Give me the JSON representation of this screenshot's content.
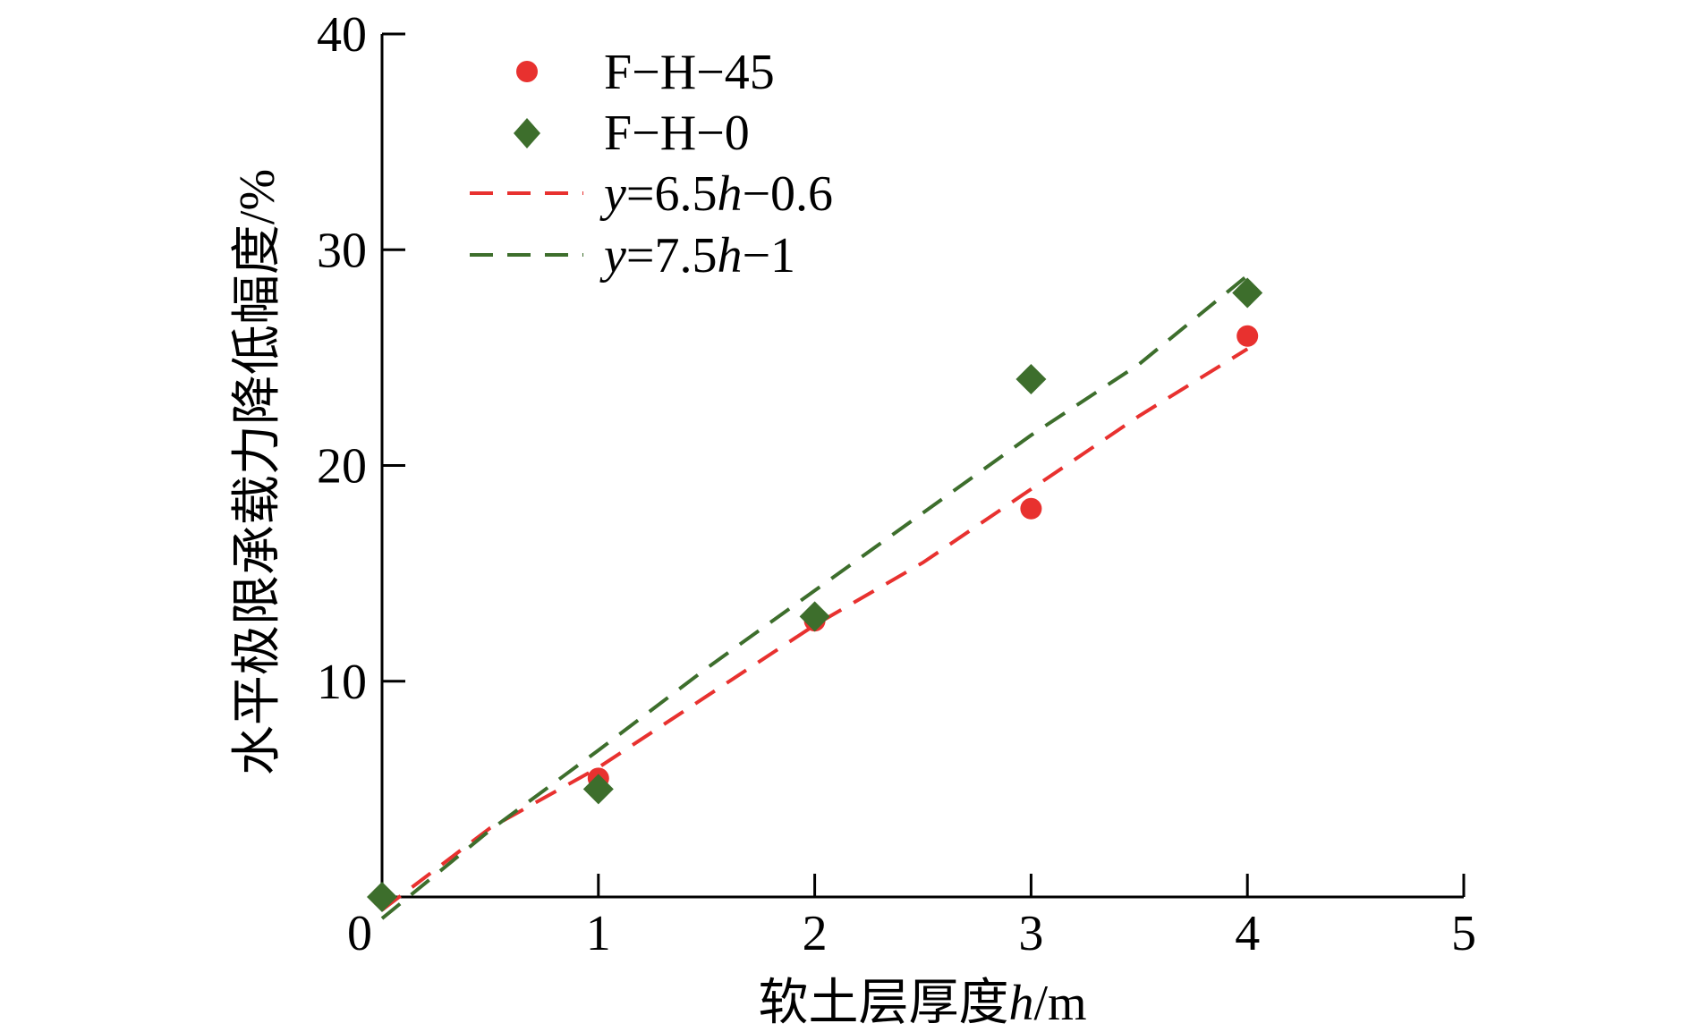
{
  "chart_data": {
    "type": "scatter",
    "title": "",
    "xlabel": "软土层厚度h/m",
    "xlabel_parts": {
      "text": "软土层厚度",
      "var": "h",
      "unit": "/m"
    },
    "ylabel": "水平极限承载力降低幅度/%",
    "xlim": [
      0,
      5
    ],
    "ylim": [
      0,
      40
    ],
    "x_ticks": [
      1,
      2,
      3,
      4,
      5
    ],
    "y_ticks": [
      10,
      20,
      30,
      40
    ],
    "origin_label": "0",
    "grid": false,
    "legend_position": "top-left",
    "series": [
      {
        "name": "F−H−45",
        "marker": "circle",
        "color": "#e8312f",
        "x": [
          0,
          1,
          2,
          3,
          4
        ],
        "y": [
          0,
          5.5,
          12.8,
          18,
          26
        ]
      },
      {
        "name": "F−H−0",
        "marker": "diamond",
        "color": "#3d6e2c",
        "x": [
          0,
          1,
          2,
          3,
          4
        ],
        "y": [
          0,
          5,
          13,
          24,
          28
        ]
      }
    ],
    "fits": [
      {
        "label": "y=6.5h−0.6",
        "label_parts": [
          "y",
          "=6.5",
          "h",
          "−0.6"
        ],
        "color": "#e8312f",
        "x": [
          0,
          0.5,
          1,
          1.5,
          2,
          2.5,
          3,
          3.5,
          4
        ],
        "y": [
          -0.6,
          3.2,
          6.0,
          9.3,
          12.6,
          15.5,
          18.9,
          22.3,
          25.4
        ]
      },
      {
        "label": "y=7.5h−1",
        "label_parts": [
          "y",
          "=7.5",
          "h",
          "−1"
        ],
        "color": "#3d6e2c",
        "x": [
          0,
          0.5,
          1,
          1.5,
          2,
          2.5,
          3,
          3.5,
          4
        ],
        "y": [
          -1,
          3.1,
          6.8,
          10.6,
          14.2,
          17.8,
          21.4,
          24.7,
          28.8
        ]
      }
    ]
  }
}
